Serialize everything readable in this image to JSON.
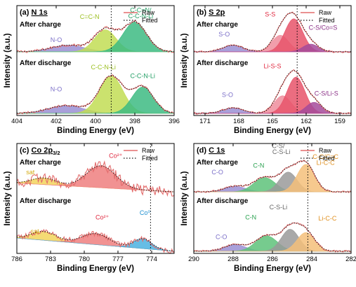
{
  "figure": {
    "ylabel": "Intensity (a.u.)",
    "xlabel": "Binding Energy (eV)",
    "legend_raw": "Raw",
    "legend_fitted": "Fitted",
    "raw_color": "#e36d6d",
    "fitted_color": "#111111"
  },
  "chart_data": [
    {
      "type": "line",
      "letter": "(a)",
      "title_main": "N 1s",
      "title_sub": "",
      "xlim": [
        404,
        396
      ],
      "xticks": [
        404,
        402,
        400,
        398,
        396
      ],
      "xlabel": "Binding Energy (eV)",
      "ylabel": "Intensity (a.u.)",
      "vline": 399.2,
      "stacks": [
        {
          "state": "After charge",
          "baseline": 0.58,
          "noise": 0.012,
          "peaks": [
            {
              "name": "N-O",
              "center": 401.4,
              "height": 0.06,
              "width": 0.85,
              "color": "#9a8fd4"
            },
            {
              "name": "C=C-N",
              "center": 399.5,
              "height": 0.2,
              "width": 0.55,
              "color": "#c2dd55"
            },
            {
              "name": "C-C=N/ C-C-N-Li",
              "center": 398.0,
              "height": 0.27,
              "width": 0.6,
              "color": "#3dbb83"
            }
          ],
          "labels": [
            {
              "text": "N-O",
              "x": 402.0,
              "y": 0.67,
              "color": "#7a6ec8"
            },
            {
              "text": "C=C-N",
              "x": 400.3,
              "y": 0.88,
              "color": "#9bbf1f"
            },
            {
              "text": "C-C=N/",
              "x": 397.7,
              "y": 0.94,
              "color": "#1f9d62"
            },
            {
              "text": "C-C-N-Li",
              "x": 397.7,
              "y": 0.885,
              "color": "#1f9d62"
            }
          ]
        },
        {
          "state": "After discharge",
          "baseline": 0.02,
          "noise": 0.01,
          "peaks": [
            {
              "name": "N-O",
              "center": 401.5,
              "height": 0.07,
              "width": 0.9,
              "color": "#9a8fd4"
            },
            {
              "name": "C-C-N-Li",
              "center": 399.2,
              "height": 0.34,
              "width": 0.6,
              "color": "#c2dd55"
            },
            {
              "name": "C-C-N-Li",
              "center": 397.6,
              "height": 0.24,
              "width": 0.55,
              "color": "#3dbb83"
            }
          ],
          "labels": [
            {
              "text": "N-O",
              "x": 402.0,
              "y": 0.22,
              "color": "#7a6ec8"
            },
            {
              "text": "C-C-N-Li",
              "x": 399.6,
              "y": 0.42,
              "color": "#9bbf1f"
            },
            {
              "text": "C-C-N-Li",
              "x": 397.6,
              "y": 0.34,
              "color": "#1f9d62"
            }
          ]
        }
      ]
    },
    {
      "type": "line",
      "letter": "(b)",
      "title_main": "S 2p",
      "title_sub": "",
      "xlim": [
        172,
        158
      ],
      "xticks": [
        171,
        168,
        165,
        162,
        159
      ],
      "xlabel": "Binding Energy (eV)",
      "ylabel": "Intensity (a.u.)",
      "vline": 162.8,
      "stacks": [
        {
          "state": "After charge",
          "baseline": 0.58,
          "noise": 0.008,
          "peaks": [
            {
              "name": "S-O",
              "center": 168.5,
              "height": 0.06,
              "width": 0.9,
              "color": "#9a8fd4"
            },
            {
              "name": "S-S",
              "center": 164.3,
              "height": 0.15,
              "width": 0.75,
              "color": "#ef8d9c"
            },
            {
              "name": "S-S",
              "center": 163.1,
              "height": 0.3,
              "width": 0.8,
              "color": "#e8536a"
            },
            {
              "name": "C-S/Co=S",
              "center": 161.6,
              "height": 0.07,
              "width": 0.7,
              "color": "#a44a9a"
            }
          ],
          "labels": [
            {
              "text": "S-O",
              "x": 169.3,
              "y": 0.72,
              "color": "#7a6ec8"
            },
            {
              "text": "S-S",
              "x": 165.2,
              "y": 0.9,
              "color": "#e0283f"
            },
            {
              "text": "C-S/Co=S",
              "x": 160.5,
              "y": 0.78,
              "color": "#8a2f86"
            }
          ]
        },
        {
          "state": "After discharge",
          "baseline": 0.02,
          "noise": 0.008,
          "peaks": [
            {
              "name": "S-O",
              "center": 168.5,
              "height": 0.05,
              "width": 0.9,
              "color": "#9a8fd4"
            },
            {
              "name": "Li-S-S",
              "center": 164.1,
              "height": 0.16,
              "width": 0.75,
              "color": "#ef8d9c"
            },
            {
              "name": "Li-S-S",
              "center": 162.9,
              "height": 0.33,
              "width": 0.8,
              "color": "#e8536a"
            },
            {
              "name": "C-S/Li-S",
              "center": 161.3,
              "height": 0.1,
              "width": 0.7,
              "color": "#a44a9a"
            }
          ],
          "labels": [
            {
              "text": "S-O",
              "x": 169.0,
              "y": 0.17,
              "color": "#7a6ec8"
            },
            {
              "text": "Li-S-S",
              "x": 165.0,
              "y": 0.43,
              "color": "#e0283f"
            },
            {
              "text": "C-S/Li-S",
              "x": 160.2,
              "y": 0.18,
              "color": "#8a2f86"
            }
          ]
        }
      ]
    },
    {
      "type": "line",
      "letter": "(c)",
      "title_main": "Co 2p",
      "title_sub": "3/2",
      "xlim": [
        786,
        772
      ],
      "xticks": [
        786,
        783,
        780,
        777,
        774
      ],
      "xlabel": "Binding Energy (eV)",
      "ylabel": "Intensity (a.u.)",
      "vline": 774.1,
      "stacks": [
        {
          "state": "After charge",
          "baseline": 0.56,
          "slope": 0.08,
          "noise": 0.045,
          "peaks": [
            {
              "name": "sat",
              "center": 783.6,
              "height": 0.06,
              "width": 1.1,
              "color": "#f2d55c"
            },
            {
              "name": "Co2+",
              "center": 778.5,
              "height": 0.2,
              "width": 1.3,
              "color": "#ef7f7f"
            }
          ],
          "labels": [
            {
              "text": "sat",
              "x": 784.8,
              "y": 0.72,
              "color": "#d4a90f"
            },
            {
              "text": "Co²⁺",
              "x": 777.2,
              "y": 0.87,
              "color": "#e0283f"
            }
          ]
        },
        {
          "state": "After discharge",
          "baseline": 0.02,
          "slope": 0.12,
          "noise": 0.022,
          "peaks": [
            {
              "name": "sat",
              "center": 783.6,
              "height": 0.08,
              "width": 1.1,
              "color": "#f2d55c"
            },
            {
              "name": "Co2+",
              "center": 779.0,
              "height": 0.1,
              "width": 1.2,
              "color": "#ef7f7f"
            },
            {
              "name": "Co0",
              "center": 774.8,
              "height": 0.09,
              "width": 0.8,
              "color": "#4bb2e0"
            }
          ],
          "labels": [
            {
              "text": "sat",
              "x": 784.4,
              "y": 0.18,
              "color": "#d4a90f"
            },
            {
              "text": "Co²⁺",
              "x": 778.4,
              "y": 0.31,
              "color": "#e0283f"
            },
            {
              "text": "Co⁰",
              "x": 774.6,
              "y": 0.35,
              "color": "#1c8fd0"
            }
          ]
        }
      ]
    },
    {
      "type": "line",
      "letter": "(d)",
      "title_main": "C 1s",
      "title_sub": "",
      "xlim": [
        290,
        282
      ],
      "xticks": [
        290,
        288,
        286,
        284,
        282
      ],
      "xlabel": "Binding Energy (eV)",
      "ylabel": "Intensity (a.u.)",
      "vline": 284.2,
      "stacks": [
        {
          "state": "After charge",
          "baseline": 0.56,
          "noise": 0.008,
          "peaks": [
            {
              "name": "C-O",
              "center": 287.9,
              "height": 0.05,
              "width": 0.55,
              "color": "#9a8fd4"
            },
            {
              "name": "C-N",
              "center": 286.4,
              "height": 0.13,
              "width": 0.55,
              "color": "#5ec27a"
            },
            {
              "name": "C-S/ C-S-Li",
              "center": 285.2,
              "height": 0.18,
              "width": 0.45,
              "color": "#9a9a9a"
            },
            {
              "name": "C-C/C=C Li-C-C",
              "center": 284.3,
              "height": 0.25,
              "width": 0.45,
              "color": "#f4c07a"
            }
          ],
          "labels": [
            {
              "text": "C-O",
              "x": 288.8,
              "y": 0.72,
              "color": "#7a6ec8"
            },
            {
              "text": "C-N",
              "x": 286.7,
              "y": 0.78,
              "color": "#2aa150"
            },
            {
              "text": "C-S/",
              "x": 285.7,
              "y": 0.96,
              "color": "#666666"
            },
            {
              "text": "C-S-Li",
              "x": 285.55,
              "y": 0.905,
              "color": "#666666"
            },
            {
              "text": "C-C/C=C",
              "x": 283.3,
              "y": 0.86,
              "color": "#e09020"
            },
            {
              "text": "Li-C-C",
              "x": 283.3,
              "y": 0.805,
              "color": "#e09020"
            }
          ]
        },
        {
          "state": "After discharge",
          "baseline": 0.02,
          "noise": 0.008,
          "peaks": [
            {
              "name": "C-O",
              "center": 287.9,
              "height": 0.06,
              "width": 0.55,
              "color": "#9a8fd4"
            },
            {
              "name": "C-N",
              "center": 286.3,
              "height": 0.14,
              "width": 0.55,
              "color": "#5ec27a"
            },
            {
              "name": "C-S-Li",
              "center": 285.1,
              "height": 0.2,
              "width": 0.45,
              "color": "#9a9a9a"
            },
            {
              "name": "Li-C-C",
              "center": 284.3,
              "height": 0.17,
              "width": 0.45,
              "color": "#f4c07a"
            }
          ],
          "labels": [
            {
              "text": "C-O",
              "x": 288.6,
              "y": 0.13,
              "color": "#7a6ec8"
            },
            {
              "text": "C-N",
              "x": 287.1,
              "y": 0.31,
              "color": "#2aa150"
            },
            {
              "text": "C-S-Li",
              "x": 285.7,
              "y": 0.4,
              "color": "#666666"
            },
            {
              "text": "Li-C-C",
              "x": 283.2,
              "y": 0.3,
              "color": "#e09020"
            }
          ]
        }
      ]
    }
  ]
}
